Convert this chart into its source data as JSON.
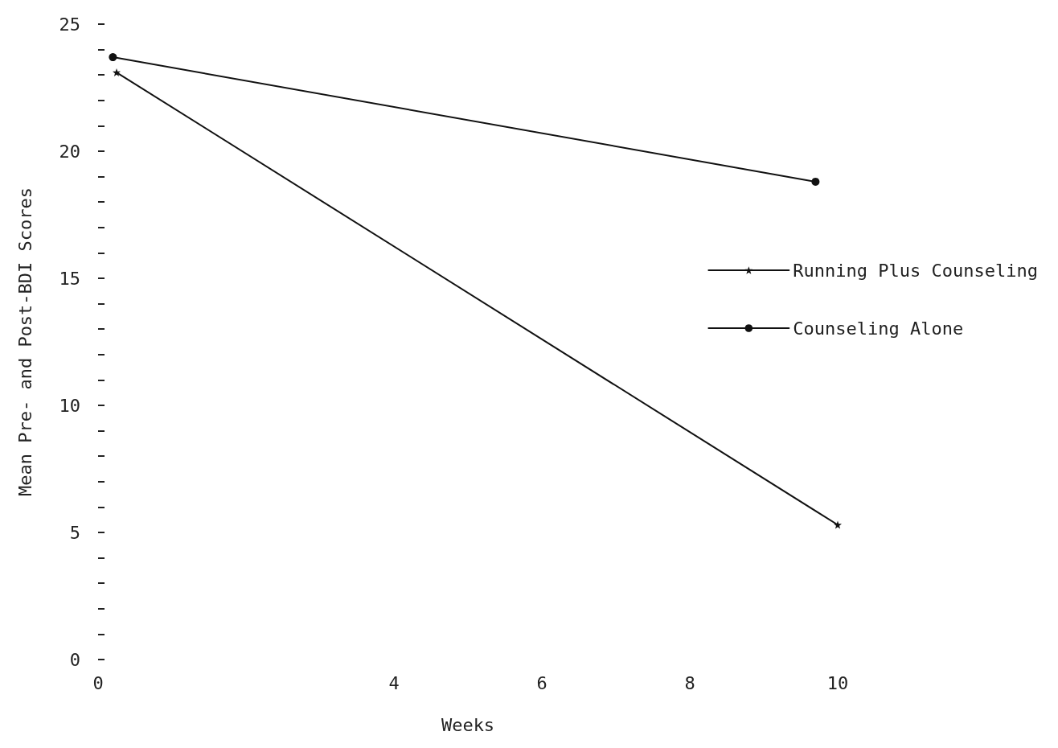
{
  "chart_data": {
    "type": "line",
    "xlabel": "Weeks",
    "ylabel": "Mean Pre- and Post-BDI Scores",
    "series": [
      {
        "name": "Running Plus Counseling",
        "color": "#111111",
        "marker": "star",
        "x": [
          0.25,
          10
        ],
        "values": [
          23.1,
          5.3
        ]
      },
      {
        "name": "Counseling Alone",
        "color": "#111111",
        "marker": "circle",
        "x": [
          0.2,
          9.7
        ],
        "values": [
          23.7,
          18.8
        ]
      }
    ],
    "xlim": [
      0,
      10
    ],
    "ylim": [
      0,
      25
    ],
    "xticks": [
      0,
      4,
      6,
      8,
      10
    ],
    "yticks": [
      0,
      {
        "value": 1,
        "label": null
      },
      {
        "value": 2,
        "label": null
      },
      {
        "value": 3,
        "label": null
      },
      {
        "value": 4,
        "label": null
      },
      5,
      {
        "value": 6,
        "label": null
      },
      {
        "value": 7,
        "label": null
      },
      {
        "value": 8,
        "label": null
      },
      {
        "value": 9,
        "label": null
      },
      10,
      {
        "value": 11,
        "label": null
      },
      {
        "value": 12,
        "label": null
      },
      {
        "value": 13,
        "label": null
      },
      {
        "value": 14,
        "label": null
      },
      15,
      {
        "value": 16,
        "label": null
      },
      {
        "value": 17,
        "label": null
      },
      {
        "value": 18,
        "label": null
      },
      {
        "value": 19,
        "label": null
      },
      20,
      {
        "value": 21,
        "label": null
      },
      {
        "value": 22,
        "label": null
      },
      {
        "value": 23,
        "label": null
      },
      {
        "value": 24,
        "label": null
      },
      25
    ],
    "grid": false,
    "legend": "right",
    "line_style": "solid"
  }
}
